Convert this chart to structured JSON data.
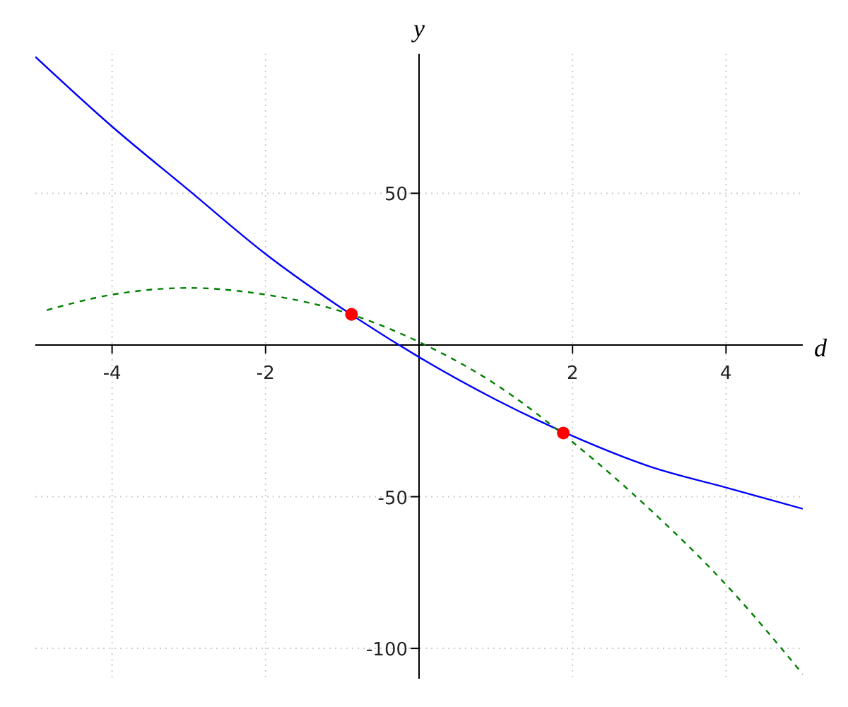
{
  "chart_data": {
    "type": "line",
    "xlabel": "d",
    "ylabel": "y",
    "xlim": [
      -5,
      5
    ],
    "ylim": [
      -110,
      96
    ],
    "xticks": [
      -4,
      -2,
      2,
      4
    ],
    "yticks": [
      -100,
      -50,
      50
    ],
    "grid": true,
    "legend": false,
    "series": [
      {
        "color": "#0000ff",
        "line_style": "solid",
        "marker": "none",
        "x": [
          -5,
          -4,
          -3,
          -2,
          -1,
          0,
          1,
          2,
          3,
          4,
          5
        ],
        "values": [
          95,
          72,
          51,
          30,
          12,
          -4,
          -18,
          -30,
          -40,
          -47,
          -54
        ]
      },
      {
        "color": "#008000",
        "line_style": "dashed",
        "marker": "none",
        "x": [
          -4.85,
          -4,
          -3,
          -2,
          -1,
          0,
          1,
          2,
          3,
          4,
          5
        ],
        "values": [
          11.5,
          16.6,
          18.8,
          16.6,
          11,
          1,
          -13,
          -32,
          -54,
          -79,
          -108.5
        ]
      },
      {
        "type": "scatter",
        "color": "#ff0000",
        "marker": "circle",
        "x": [
          -0.88,
          1.88
        ],
        "values": [
          10.1,
          -29
        ]
      }
    ]
  }
}
